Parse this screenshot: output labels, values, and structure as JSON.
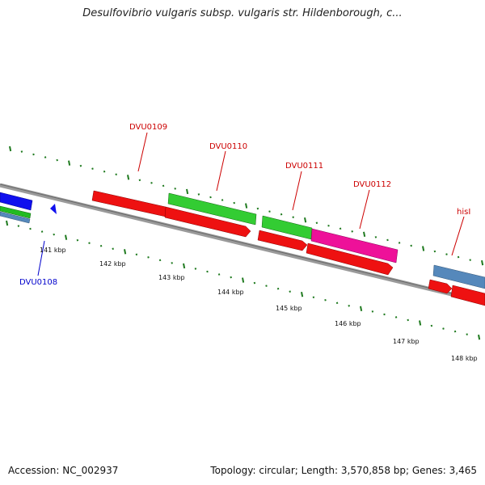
{
  "title": "Desulfovibrio vulgaris subsp. vulgaris str. Hildenborough, c...",
  "footer": {
    "accession": "Accession: NC_002937",
    "summary": "Topology: circular; Length: 3,570,858 bp; Genes: 3,465"
  },
  "colors": {
    "backbone": "#808080",
    "tick": "#1f7a1f",
    "label_red": "#cc0000",
    "label_blue": "#0000cc"
  },
  "ruler_labels": [
    "141 kbp",
    "142 kbp",
    "143 kbp",
    "144 kbp",
    "145 kbp",
    "146 kbp",
    "147 kbp",
    "148 kbp"
  ],
  "gene_labels": [
    {
      "text": "DVU0109",
      "color": "#cc0000"
    },
    {
      "text": "DVU0110",
      "color": "#cc0000"
    },
    {
      "text": "DVU0111",
      "color": "#cc0000"
    },
    {
      "text": "DVU0112",
      "color": "#cc0000"
    },
    {
      "text": "hisI",
      "color": "#cc0000"
    },
    {
      "text": "DVU0108",
      "color": "#0000cc"
    }
  ]
}
